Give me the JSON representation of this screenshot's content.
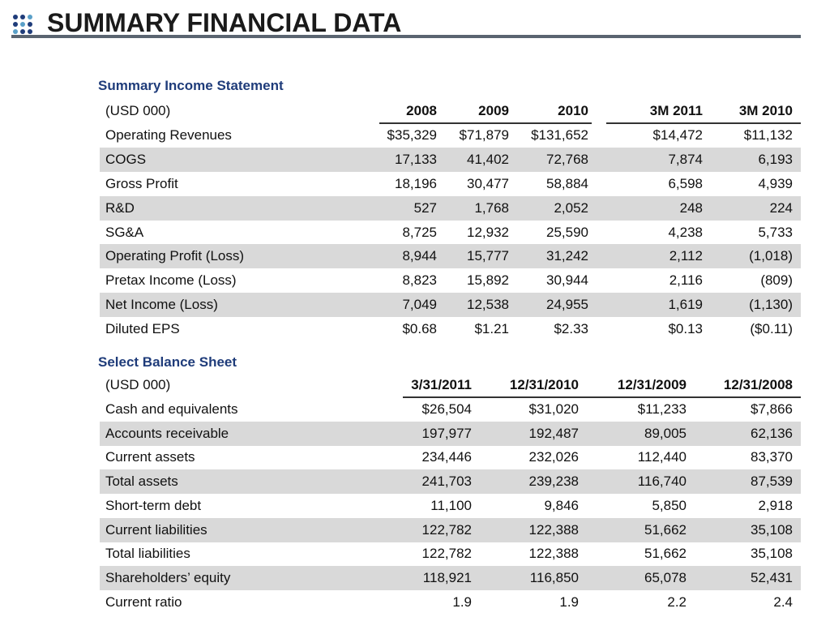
{
  "header": {
    "title": "SUMMARY FINANCIAL DATA"
  },
  "income_statement": {
    "title": "Summary Income Statement",
    "columns": [
      "(USD 000)",
      "2008",
      "2009",
      "2010",
      "3M 2011",
      "3M 2010"
    ],
    "rows": [
      [
        "Operating Revenues",
        "$35,329",
        "$71,879",
        "$131,652",
        "$14,472",
        "$11,132"
      ],
      [
        "COGS",
        "17,133",
        "41,402",
        "72,768",
        "7,874",
        "6,193"
      ],
      [
        "Gross Profit",
        "18,196",
        "30,477",
        "58,884",
        "6,598",
        "4,939"
      ],
      [
        "R&D",
        "527",
        "1,768",
        "2,052",
        "248",
        "224"
      ],
      [
        "SG&A",
        "8,725",
        "12,932",
        "25,590",
        "4,238",
        "5,733"
      ],
      [
        "Operating Profit (Loss)",
        "8,944",
        "15,777",
        "31,242",
        "2,112",
        "(1,018)"
      ],
      [
        "Pretax Income (Loss)",
        "8,823",
        "15,892",
        "30,944",
        "2,116",
        "(809)"
      ],
      [
        "Net Income (Loss)",
        "7,049",
        "12,538",
        "24,955",
        "1,619",
        "(1,130)"
      ],
      [
        "Diluted EPS",
        "$0.68",
        "$1.21",
        "$2.33",
        "$0.13",
        "($0.11)"
      ]
    ]
  },
  "balance_sheet": {
    "title": "Select Balance Sheet",
    "columns": [
      "(USD 000)",
      "3/31/2011",
      "12/31/2010",
      "12/31/2009",
      "12/31/2008"
    ],
    "rows": [
      [
        "Cash and equivalents",
        "$26,504",
        "$31,020",
        "$11,233",
        "$7,866"
      ],
      [
        "Accounts receivable",
        "197,977",
        "192,487",
        "89,005",
        "62,136"
      ],
      [
        "Current assets",
        "234,446",
        "232,026",
        "112,440",
        "83,370"
      ],
      [
        "Total assets",
        "241,703",
        "239,238",
        "116,740",
        "87,539"
      ],
      [
        "Short-term debt",
        "11,100",
        "9,846",
        "5,850",
        "2,918"
      ],
      [
        "Current liabilities",
        "122,782",
        "122,388",
        "51,662",
        "35,108"
      ],
      [
        "Total liabilities",
        "122,782",
        "122,388",
        "51,662",
        "35,108"
      ],
      [
        "Shareholders’ equity",
        "118,921",
        "116,850",
        "65,078",
        "52,431"
      ],
      [
        "Current ratio",
        "1.9",
        "1.9",
        "2.2",
        "2.4"
      ]
    ]
  }
}
